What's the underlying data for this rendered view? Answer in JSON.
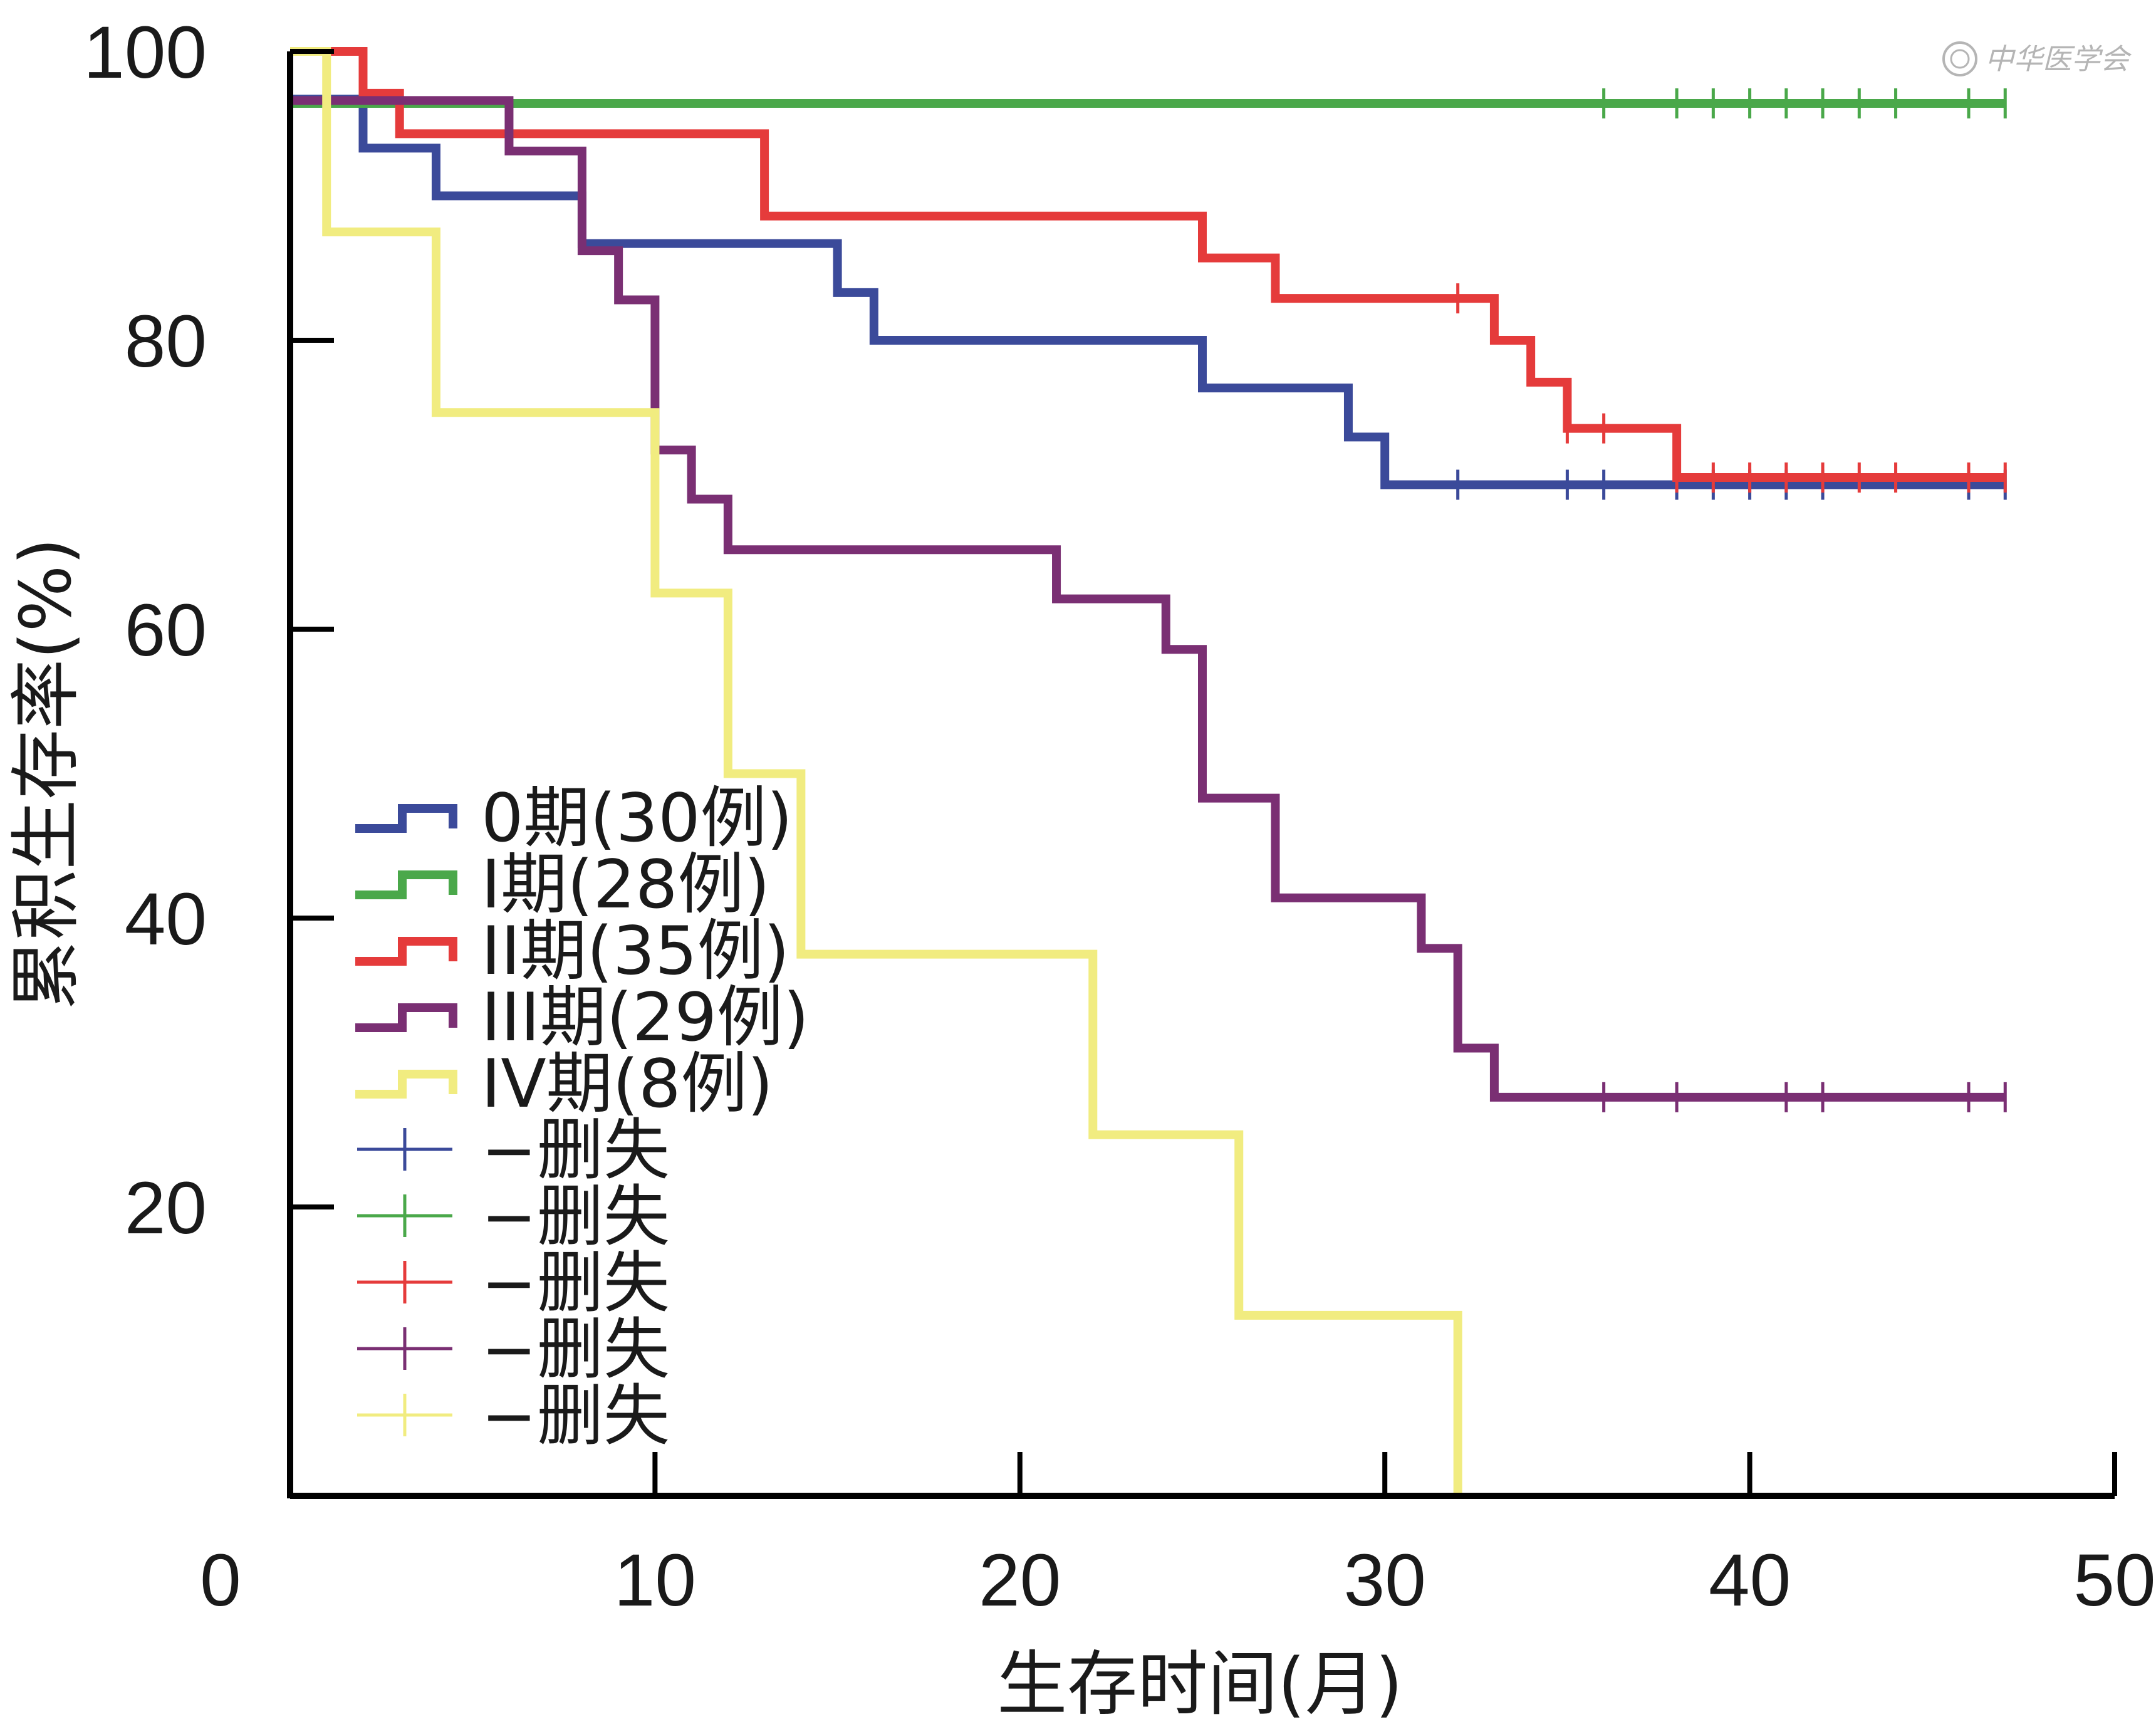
{
  "chart_data": {
    "type": "line",
    "subtype": "kaplan-meier step curve",
    "xlabel": "生存时间(月)",
    "ylabel": "累积生存率(%)",
    "xlim": [
      0,
      50
    ],
    "ylim": [
      0,
      100
    ],
    "x_ticks": [
      0,
      10,
      20,
      30,
      40,
      50
    ],
    "y_ticks": [
      20,
      40,
      60,
      80,
      100
    ],
    "grid": false,
    "legend_position": "lower-left",
    "watermark": "中华医学会",
    "series": [
      {
        "name": "0期(30例)",
        "color": "#3b4a9a",
        "steps": [
          [
            0,
            96.7
          ],
          [
            2,
            93.3
          ],
          [
            4,
            90.0
          ],
          [
            8,
            86.7
          ],
          [
            15,
            83.3
          ],
          [
            16,
            80.0
          ],
          [
            25,
            76.7
          ],
          [
            29,
            73.3
          ],
          [
            30,
            70.0
          ],
          [
            47,
            70.0
          ]
        ],
        "censored": [
          32,
          35,
          36,
          38,
          39,
          40,
          41,
          42,
          46,
          47
        ]
      },
      {
        "name": "I期(28例)",
        "color": "#4aa84a",
        "steps": [
          [
            0,
            96.4
          ],
          [
            47,
            96.4
          ]
        ],
        "censored": [
          36,
          38,
          39,
          40,
          41,
          42,
          43,
          44,
          46,
          47
        ]
      },
      {
        "name": "II期(35例)",
        "color": "#e53b3b",
        "steps": [
          [
            0,
            100
          ],
          [
            2,
            97.1
          ],
          [
            3,
            94.3
          ],
          [
            13,
            88.6
          ],
          [
            25,
            85.7
          ],
          [
            27,
            82.9
          ],
          [
            33,
            80.0
          ],
          [
            34,
            77.1
          ],
          [
            35,
            73.9
          ],
          [
            38,
            70.5
          ],
          [
            47,
            70.5
          ]
        ],
        "censored": [
          32,
          35,
          36,
          38,
          39,
          40,
          41,
          42,
          43,
          44,
          46,
          47
        ]
      },
      {
        "name": "III期(29例)",
        "color": "#7a2f73",
        "steps": [
          [
            0,
            96.6
          ],
          [
            6,
            93.1
          ],
          [
            8,
            86.2
          ],
          [
            9,
            82.8
          ],
          [
            10,
            72.4
          ],
          [
            11,
            69.0
          ],
          [
            12,
            65.5
          ],
          [
            21,
            62.1
          ],
          [
            24,
            58.6
          ],
          [
            25,
            48.3
          ],
          [
            27,
            41.4
          ],
          [
            31,
            37.9
          ],
          [
            32,
            31.0
          ],
          [
            33,
            27.6
          ],
          [
            47,
            27.6
          ]
        ],
        "censored": [
          36,
          38,
          41,
          42,
          46,
          47
        ]
      },
      {
        "name": "IV期(8例)",
        "color": "#f1ec80",
        "steps": [
          [
            0,
            100
          ],
          [
            1,
            87.5
          ],
          [
            4,
            75.0
          ],
          [
            10,
            62.5
          ],
          [
            12,
            50.0
          ],
          [
            14,
            37.5
          ],
          [
            22,
            25.0
          ],
          [
            26,
            12.5
          ],
          [
            32,
            0
          ]
        ],
        "censored": []
      }
    ],
    "censor_legend": [
      {
        "label": "−删失",
        "color": "#3b4a9a"
      },
      {
        "label": "−删失",
        "color": "#4aa84a"
      },
      {
        "label": "−删失",
        "color": "#e53b3b"
      },
      {
        "label": "−删失",
        "color": "#7a2f73"
      },
      {
        "label": "−删失",
        "color": "#f1ec80"
      }
    ]
  }
}
